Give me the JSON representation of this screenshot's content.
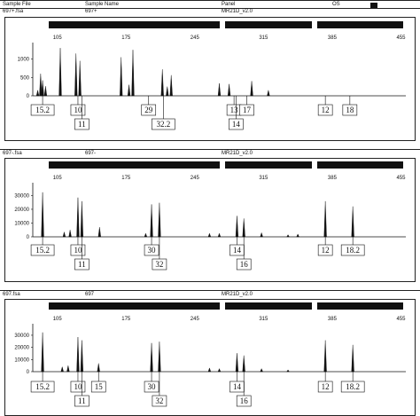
{
  "header_labels": {
    "sample_file": "Sample File",
    "sample_name": "Sample Name",
    "panel": "Panel",
    "os": "OS"
  },
  "x_ticks": [
    "105",
    "175",
    "245",
    "315",
    "385",
    "455"
  ],
  "colors": {
    "ink": "#111111",
    "marker_bar": "#1a1a1a",
    "background": "#ffffff"
  },
  "chart_data": [
    {
      "type": "line",
      "file": "697+.fsa",
      "sample": "697+",
      "panel": "MR21D_v2.0",
      "x_range": [
        80,
        460
      ],
      "ylim": [
        0,
        1400
      ],
      "y_ticks": [
        0,
        500,
        1000
      ],
      "peaks": [
        {
          "x": 85,
          "y": 150
        },
        {
          "x": 88,
          "y": 600
        },
        {
          "x": 90,
          "y": 420
        },
        {
          "x": 93,
          "y": 260
        },
        {
          "x": 108,
          "y": 1300
        },
        {
          "x": 124,
          "y": 1150
        },
        {
          "x": 128,
          "y": 950
        },
        {
          "x": 170,
          "y": 1050
        },
        {
          "x": 178,
          "y": 300
        },
        {
          "x": 182,
          "y": 1250
        },
        {
          "x": 212,
          "y": 720
        },
        {
          "x": 217,
          "y": 250
        },
        {
          "x": 221,
          "y": 560
        },
        {
          "x": 270,
          "y": 340
        },
        {
          "x": 280,
          "y": 320
        },
        {
          "x": 303,
          "y": 400
        },
        {
          "x": 320,
          "y": 150
        }
      ],
      "calls": [
        {
          "x": 90,
          "label": "15.2",
          "row": 1
        },
        {
          "x": 126,
          "label": "10",
          "row": 1
        },
        {
          "x": 130,
          "label": "11",
          "row": 2
        },
        {
          "x": 198,
          "label": "29",
          "row": 1
        },
        {
          "x": 213,
          "label": "32.2",
          "row": 2
        },
        {
          "x": 285,
          "label": "13",
          "row": 1
        },
        {
          "x": 287,
          "label": "14",
          "row": 2
        },
        {
          "x": 298,
          "label": "17",
          "row": 1
        },
        {
          "x": 378,
          "label": "12",
          "row": 1
        },
        {
          "x": 403,
          "label": "18",
          "row": 1
        }
      ]
    },
    {
      "type": "line",
      "file": "697-.fsa",
      "sample": "697-",
      "panel": "MR21D_v2.0",
      "x_range": [
        80,
        460
      ],
      "ylim": [
        0,
        38000
      ],
      "y_ticks": [
        0,
        10000,
        20000,
        30000
      ],
      "peaks": [
        {
          "x": 112,
          "y": 3500
        },
        {
          "x": 118,
          "y": 5000
        },
        {
          "x": 148,
          "y": 7000
        },
        {
          "x": 195,
          "y": 2500
        },
        {
          "x": 260,
          "y": 2500
        },
        {
          "x": 270,
          "y": 2500
        },
        {
          "x": 313,
          "y": 3000
        },
        {
          "x": 340,
          "y": 1500
        },
        {
          "x": 350,
          "y": 2000
        }
      ],
      "calls": [
        {
          "x": 90,
          "label": "15.2",
          "row": 1
        },
        {
          "x": 126,
          "label": "10",
          "row": 1
        },
        {
          "x": 130,
          "label": "11",
          "row": 2
        },
        {
          "x": 201,
          "label": "30",
          "row": 1
        },
        {
          "x": 209,
          "label": "32",
          "row": 2
        },
        {
          "x": 288,
          "label": "14",
          "row": 1
        },
        {
          "x": 295,
          "label": "16",
          "row": 2
        },
        {
          "x": 378,
          "label": "12",
          "row": 1
        },
        {
          "x": 406,
          "label": "18.2",
          "row": 1
        }
      ]
    },
    {
      "type": "line",
      "file": "697.fsa",
      "sample": "697",
      "panel": "MR21D_v2.0",
      "x_range": [
        80,
        460
      ],
      "ylim": [
        0,
        38000
      ],
      "y_ticks": [
        0,
        10000,
        20000,
        30000
      ],
      "peaks": [
        {
          "x": 110,
          "y": 4000
        },
        {
          "x": 116,
          "y": 5000
        },
        {
          "x": 260,
          "y": 3000
        },
        {
          "x": 270,
          "y": 2500
        },
        {
          "x": 313,
          "y": 2500
        },
        {
          "x": 340,
          "y": 1500
        }
      ],
      "calls": [
        {
          "x": 90,
          "label": "15.2",
          "row": 1
        },
        {
          "x": 126,
          "label": "10",
          "row": 1
        },
        {
          "x": 130,
          "label": "11",
          "row": 2
        },
        {
          "x": 147,
          "label": "15",
          "row": 1
        },
        {
          "x": 201,
          "label": "30",
          "row": 1
        },
        {
          "x": 209,
          "label": "32",
          "row": 2
        },
        {
          "x": 288,
          "label": "14",
          "row": 1
        },
        {
          "x": 295,
          "label": "16",
          "row": 2
        },
        {
          "x": 378,
          "label": "12",
          "row": 1
        },
        {
          "x": 406,
          "label": "18.2",
          "row": 1
        }
      ]
    }
  ]
}
